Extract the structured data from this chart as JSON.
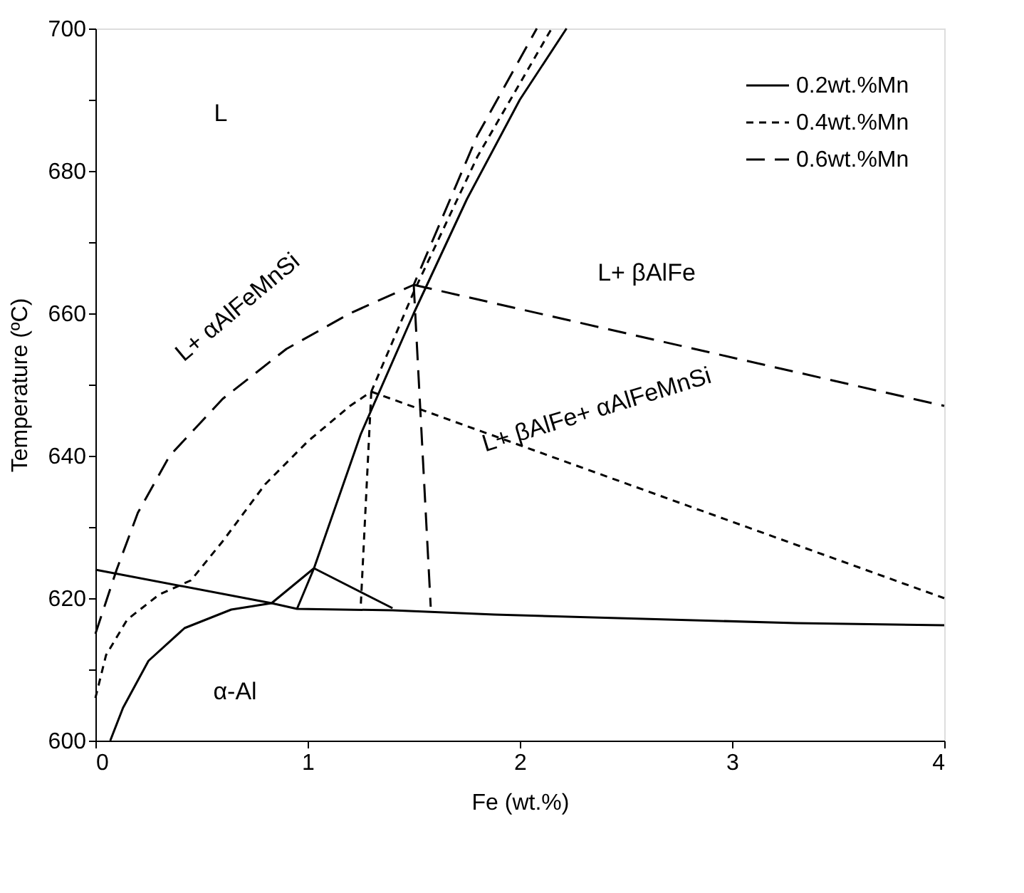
{
  "chart_data": {
    "type": "line",
    "xlabel": "Fe (wt.%)",
    "ylabel": "Temperature (ºC)",
    "xlim": [
      0,
      4
    ],
    "xticks": [
      0,
      1,
      2,
      3,
      4
    ],
    "ylim": [
      600,
      700
    ],
    "yticks": [
      600,
      {
        "value": 610,
        "label": null
      },
      620,
      {
        "value": 630,
        "label": null
      },
      640,
      {
        "value": 650,
        "label": null
      },
      660,
      {
        "value": 670,
        "label": null
      },
      680,
      {
        "value": 690,
        "label": null
      },
      700
    ],
    "grid": false,
    "legend": "top right",
    "marker": "none",
    "series": [
      {
        "name": "0.2wt.%Mn",
        "color": "#000000",
        "line_style": "solid",
        "x": [
          0,
          0.83,
          0.95,
          1.4,
          1.88,
          3.3,
          4
        ],
        "values": [
          624,
          619.3,
          618.5,
          618.3,
          617.7,
          616.5,
          616.2
        ]
      },
      {
        "name": "0.4wt.%Mn",
        "color": "#000000",
        "line_style": "dotted",
        "x": [
          0,
          0.05,
          0.15,
          0.3,
          0.45,
          0.6,
          0.8,
          1.0,
          1.2,
          1.3,
          1.5,
          1.8,
          2.15
        ],
        "values": [
          606,
          612,
          617,
          620.5,
          622.5,
          628,
          636,
          642,
          647,
          649,
          663,
          682,
          700
        ]
      },
      {
        "name": "0.6wt.%Mn",
        "color": "#000000",
        "line_style": "dashed",
        "x": [
          0,
          0.1,
          0.2,
          0.35,
          0.6,
          0.9,
          1.2,
          1.5,
          1.8,
          2.08
        ],
        "values": [
          615,
          624,
          632,
          640,
          648,
          655,
          660,
          664,
          685,
          700
        ]
      },
      {
        "color": "#000000",
        "line_style": "solid",
        "x": [
          0.07,
          0.13,
          0.25,
          0.42,
          0.64,
          0.83,
          1.03,
          1.25,
          1.5,
          1.75,
          2.0,
          2.22
        ],
        "values": [
          600,
          604.6,
          611.2,
          615.8,
          618.4,
          619.3,
          624.2,
          643,
          660,
          676,
          690,
          700
        ]
      },
      {
        "color": "#000000",
        "line_style": "solid",
        "x": [
          1.03,
          0.95
        ],
        "values": [
          624.2,
          618.5
        ]
      },
      {
        "color": "#000000",
        "line_style": "solid",
        "x": [
          1.03,
          1.4
        ],
        "values": [
          624.2,
          618.6
        ]
      },
      {
        "color": "#000000",
        "line_style": "dotted",
        "x": [
          1.3,
          1.25
        ],
        "values": [
          649,
          618.7
        ]
      },
      {
        "color": "#000000",
        "line_style": "dotted",
        "x": [
          1.3,
          4
        ],
        "values": [
          649,
          620
        ]
      },
      {
        "color": "#000000",
        "line_style": "dashed",
        "x": [
          1.5,
          4
        ],
        "values": [
          664,
          647
        ]
      },
      {
        "color": "#000000",
        "line_style": "dashed",
        "x": [
          1.5,
          1.58
        ],
        "values": [
          664,
          618.8
        ]
      }
    ],
    "annotations": [
      "L",
      "L+ αAlFeMnSi",
      "L+ βAlFe",
      "L+ βAlFe+ αAlFeMnSi",
      "α-Al"
    ]
  }
}
